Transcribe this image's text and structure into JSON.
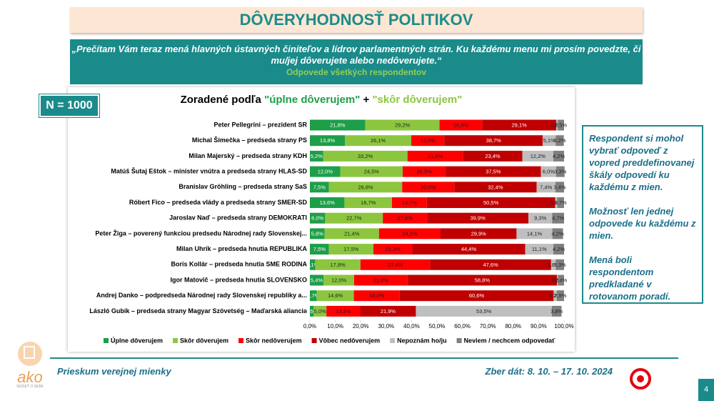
{
  "header": {
    "title": "DÔVERYHODNOSŤ POLITIKOV"
  },
  "question": {
    "text": "„Prečítam Vám teraz mená hlavných ústavných činiteľov a lídrov parlamentných strán. Ku každému menu mi prosím povedzte, či mu/jej dôverujete alebo nedôverujete.“",
    "subtitle": "Odpovede všetkých respondentov"
  },
  "sample_size": "N = 1000",
  "chart_data": {
    "type": "stacked-bar-horizontal",
    "title": [
      "Zoradené podľa",
      "\"úplne dôverujem\"",
      "+",
      "\"skôr dôverujem\""
    ],
    "categories": [
      "Peter Pellegrini – prezident SR",
      "Michal Šimečka – predseda strany PS",
      "Milan Majerský – predseda strany KDH",
      "Matúš Šutaj Eštok – minister vnútra a predseda strany HLAS-SD",
      "Branislav Gröhling – predseda strany SaS",
      "Róbert Fico – predseda vlády a predseda strany SMER-SD",
      "Jaroslav Naď – predseda strany DEMOKRATI",
      "Peter Žiga – poverený funkciou predsedu Národnej rady Slovenskej...",
      "Milan Uhrík – predseda hnutia REPUBLIKA",
      "Boris Kollár – predseda hnutia SME RODINA",
      "Igor Matovič – predseda hnutia SLOVENSKO",
      "Andrej Danko – podpredseda Národnej rady Slovenskej republiky a...",
      "László Gubík – predseda strany Magyar Szövetség – Maďarská aliancia"
    ],
    "series": [
      {
        "name": "Úplne dôverujem",
        "color": "#1e9e48",
        "values": [
          21.8,
          13.8,
          5.2,
          12.0,
          7.5,
          13.6,
          6.0,
          5.8,
          7.5,
          2.1,
          5.4,
          2.7,
          1.5
        ],
        "value_labels": [
          "21,8%",
          "13,8%",
          "5,2%",
          "12,0%",
          "7,5%",
          "13,6%",
          "6,0%",
          "5,8%",
          "7,5%",
          "2,1%",
          "5,4%",
          "2,7%",
          "1,5%"
        ]
      },
      {
        "name": "Skôr dôverujem",
        "color": "#8cc63f",
        "values": [
          29.2,
          26.1,
          33.2,
          24.5,
          28.8,
          18.7,
          22.7,
          21.4,
          17.5,
          17.8,
          12.0,
          14.6,
          5.0
        ],
        "value_labels": [
          "29,2%",
          "26,1%",
          "33,2%",
          "24,5%",
          "28,8%",
          "18,7%",
          "22,7%",
          "21,4%",
          "17,5%",
          "17,8%",
          "12,0%",
          "14,6%",
          "5,0%"
        ]
      },
      {
        "name": "Skôr nedôverujem",
        "color": "#ff0000",
        "values": [
          16.8,
          13.0,
          21.8,
          16.9,
          20.5,
          13.7,
          17.4,
          24.2,
          15.3,
          27.4,
          21.0,
          18.0,
          13.3
        ],
        "value_labels": [
          "16,8%",
          "13,0%",
          "21,8%",
          "16,9%",
          "20,5%",
          "13,7%",
          "17,4%",
          "24,2%",
          "15,3%",
          "27,4%",
          "21,0%",
          "18,0%",
          "13,3%"
        ]
      },
      {
        "name": "Vôbec nedôverujem",
        "color": "#c00000",
        "values": [
          29.1,
          38.7,
          23.4,
          37.5,
          32.4,
          50.5,
          39.9,
          29.9,
          44.4,
          47.6,
          58.8,
          60.6,
          21.9
        ],
        "value_labels": [
          "29,1%",
          "38,7%",
          "23,4%",
          "37,5%",
          "32,4%",
          "50,5%",
          "39,9%",
          "29,9%",
          "44,4%",
          "47,6%",
          "58,8%",
          "60,6%",
          "21,9%"
        ]
      },
      {
        "name": "Nepoznám ho/ju",
        "color": "#bfbfbf",
        "values": [
          0.6,
          5.1,
          12.2,
          6.0,
          7.4,
          0.8,
          9.3,
          14.1,
          11.1,
          1.8,
          0.4,
          1.2,
          53.5
        ],
        "value_labels": [
          "0,6%",
          "5,1%",
          "12,2%",
          "6,0%",
          "7,4%",
          "0,8%",
          "9,3%",
          "14,1%",
          "11,1%",
          "1,8%",
          "0,4%",
          "1,2%",
          "53,5%"
        ]
      },
      {
        "name": "Neviem / nechcem odpovedať",
        "color": "#7f7f7f",
        "values": [
          2.5,
          3.2,
          4.2,
          3.3,
          3.4,
          2.7,
          4.7,
          4.2,
          4.2,
          3.3,
          2.4,
          2.9,
          3.8
        ],
        "value_labels": [
          "2,5%",
          "3,2%",
          "4,2%",
          "3,3%",
          "3,4%",
          "2,7%",
          "4,7%",
          "4,2%",
          "4,2%",
          "3,3%",
          "2,4%",
          "2,9%",
          "3,8%"
        ]
      }
    ],
    "xlim": [
      0,
      100
    ],
    "xticks": [
      {
        "value": 0,
        "label": "0,0%"
      },
      {
        "value": 10,
        "label": "10,0%"
      },
      {
        "value": 20,
        "label": "20,0%"
      },
      {
        "value": 30,
        "label": "30,0%"
      },
      {
        "value": 40,
        "label": "40,0%"
      },
      {
        "value": 50,
        "label": "50,0%"
      },
      {
        "value": 60,
        "label": "60,0%"
      },
      {
        "value": 70,
        "label": "70,0%"
      },
      {
        "value": 80,
        "label": "80,0%"
      },
      {
        "value": 90,
        "label": "90,0%"
      },
      {
        "value": 100,
        "label": "100,0%"
      }
    ],
    "legend": "bottom"
  },
  "note": {
    "paragraphs": [
      "Respondent si mohol vybrať odpoveď z vopred preddefinovanej škály odpovedí ku každému z mien.",
      "Možnosť len jednej odpovede ku každému z mien.",
      "Mená boli respondentom predkladané v rotovanom poradí."
    ]
  },
  "footer": {
    "left": "Prieskum verejnej mienky",
    "right": "Zber dát: 8. 10. – 17. 10. 2024",
    "page": "4"
  },
  "logo": {
    "name": "ako",
    "tagline": "VEDIEŤ O SEBE"
  }
}
